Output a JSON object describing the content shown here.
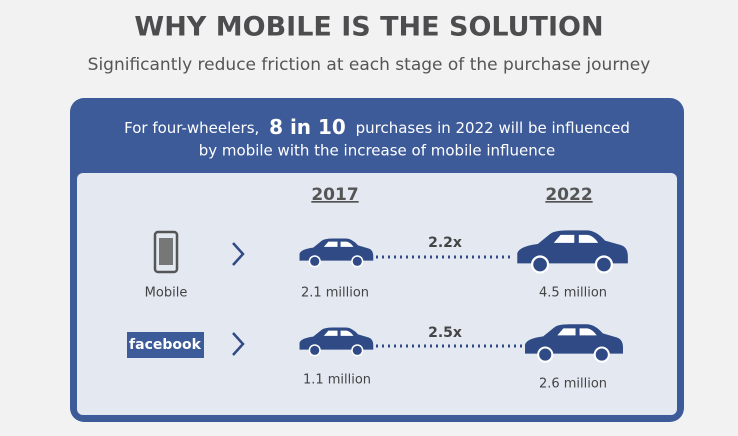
{
  "header": {
    "title": "WHY MOBILE IS THE SOLUTION",
    "subtitle": "Significantly reduce friction at each stage of the purchase journey"
  },
  "banner": {
    "lead": "For four-wheelers,",
    "highlight": "8 in 10",
    "rest": "purchases in 2022 will be influenced",
    "line2": "by mobile with the increase of mobile influence"
  },
  "columns": [
    "2017",
    "2022"
  ],
  "rows": [
    {
      "label": "Mobile",
      "from": "2.1 million",
      "growth": "2.2x",
      "to": "4.5 million"
    },
    {
      "label": "facebook",
      "from": "1.1 million",
      "growth": "2.5x",
      "to": "2.6 million"
    }
  ]
}
